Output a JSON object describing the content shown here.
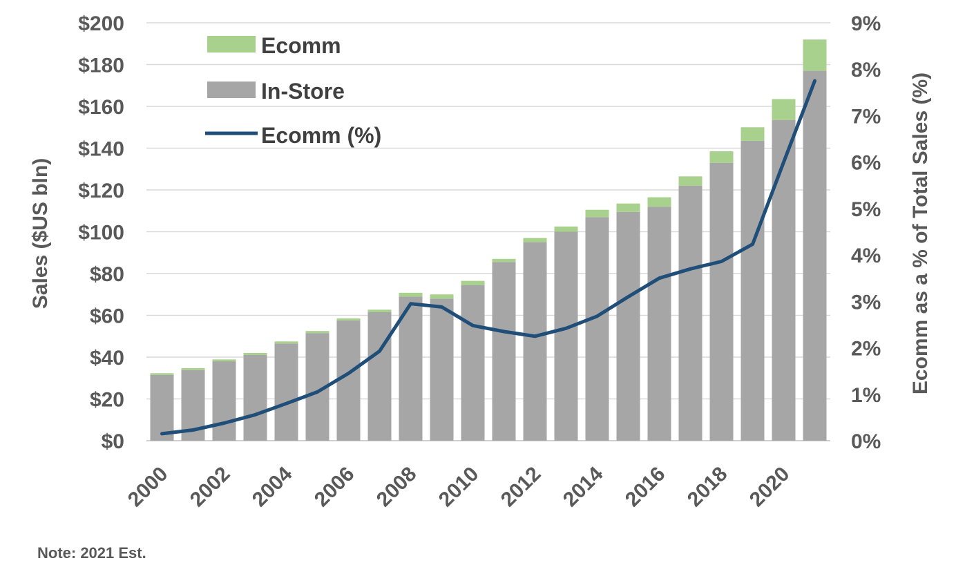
{
  "chart_data": {
    "type": "bar",
    "stacked": true,
    "x": [
      2000,
      2001,
      2002,
      2003,
      2004,
      2005,
      2006,
      2007,
      2008,
      2009,
      2010,
      2011,
      2012,
      2013,
      2014,
      2015,
      2016,
      2017,
      2018,
      2019,
      2020,
      2021
    ],
    "x_tick_labels": [
      "2000",
      "2002",
      "2004",
      "2006",
      "2008",
      "2010",
      "2012",
      "2014",
      "2016",
      "2018",
      "2020"
    ],
    "series": [
      {
        "name": "In-Store",
        "type": "bar",
        "axis": "left",
        "color": "#a6a6a6",
        "values": [
          31.5,
          33.8,
          38.0,
          41.0,
          46.5,
          51.5,
          57.5,
          61.5,
          69.0,
          68.0,
          74.5,
          85.5,
          95.0,
          100.0,
          107.0,
          109.5,
          112.0,
          122.0,
          133.0,
          143.5,
          153.5,
          177.0
        ]
      },
      {
        "name": "Ecomm",
        "type": "bar",
        "axis": "left",
        "color": "#a9d18e",
        "values": [
          0.8,
          0.9,
          0.9,
          1.0,
          1.0,
          1.0,
          1.0,
          1.2,
          1.8,
          2.0,
          2.0,
          1.5,
          2.0,
          2.5,
          3.5,
          4.0,
          4.5,
          4.5,
          5.5,
          6.5,
          10.0,
          15.0
        ]
      },
      {
        "name": "Ecomm (%)",
        "type": "line",
        "axis": "right",
        "color": "#1f4e79",
        "values": [
          0.15,
          0.23,
          0.38,
          0.56,
          0.8,
          1.05,
          1.45,
          1.93,
          2.95,
          2.88,
          2.48,
          2.35,
          2.25,
          2.42,
          2.68,
          3.1,
          3.5,
          3.7,
          3.86,
          4.23,
          6.0,
          7.75
        ]
      }
    ],
    "left_axis": {
      "label": "Sales ($US bln)",
      "min": 0,
      "max": 200,
      "step": 20,
      "tick_labels": [
        "$0",
        "$20",
        "$40",
        "$60",
        "$80",
        "$100",
        "$120",
        "$140",
        "$160",
        "$180",
        "$200"
      ]
    },
    "right_axis": {
      "label": "Ecomm as a % of Total Sales (%)",
      "min": 0,
      "max": 9,
      "step": 1,
      "tick_labels": [
        "0%",
        "1%",
        "2%",
        "3%",
        "4%",
        "5%",
        "6%",
        "7%",
        "8%",
        "9%"
      ]
    },
    "grid": true,
    "legend_position": "top-left"
  },
  "legend": {
    "ecomm": "Ecomm",
    "instore": "In-Store",
    "ecomm_pct": "Ecomm (%)"
  },
  "note": "Note: 2021 Est."
}
